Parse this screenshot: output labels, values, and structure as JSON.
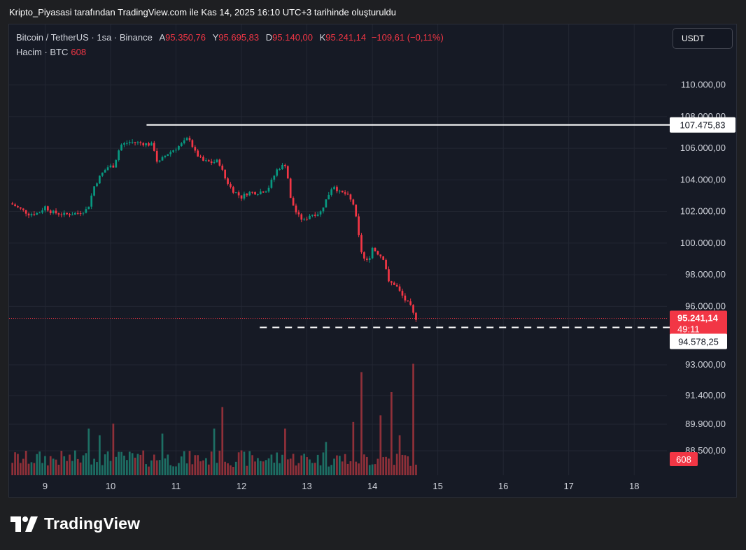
{
  "caption": "Kripto_Piyasasi tarafından TradingView.com ile Kas 14, 2025 16:10 UTC+3 tarihinde oluşturuldu",
  "legend": {
    "symbol": "Bitcoin / TetherUS · 1sa · Binance",
    "open_label": "A",
    "open": "95.350,76",
    "high_label": "Y",
    "high": "95.695,83",
    "low_label": "D",
    "low": "95.140,00",
    "close_label": "K",
    "close": "95.241,14",
    "change": "−109,61 (−0,11%)",
    "volume_label": "Hacim · BTC",
    "volume": "608"
  },
  "currency_button": "USDT",
  "brand": "TradingView",
  "colors": {
    "up": "#089981",
    "down": "#f23645",
    "vol_up": "#1d6f64",
    "vol_down": "#8f3039",
    "background": "#161a25",
    "grid": "#232733"
  },
  "chart_data": {
    "type": "candlestick",
    "interval": "1h",
    "x_tick_labels": [
      "9",
      "10",
      "11",
      "12",
      "13",
      "14",
      "15",
      "16",
      "17",
      "18"
    ],
    "x_range_days": [
      8.45,
      18.5
    ],
    "price_axis_labels": [
      "110.000,00",
      "108.000,00",
      "106.000,00",
      "104.000,00",
      "102.000,00",
      "100.000,00",
      "98.000,00",
      "96.000,00"
    ],
    "volume_axis_labels": [
      "93.000,00",
      "91.400,00",
      "89.900,00",
      "88.500,00"
    ],
    "price_range": [
      95000,
      110600
    ],
    "current_price": "95.241,14",
    "countdown": "49:11",
    "high_marker": {
      "label": "107.475,83",
      "value": 107475.83,
      "from_day": 10.55
    },
    "low_marker": {
      "label": "94.578,25",
      "value": 94578.25,
      "from_day": 12.28
    },
    "volume_label": "608",
    "price_path": [
      [
        8.5,
        102450
      ],
      [
        8.6,
        102200
      ],
      [
        8.75,
        101850
      ],
      [
        8.9,
        101900
      ],
      [
        9.0,
        102300
      ],
      [
        9.1,
        101950
      ],
      [
        9.3,
        101800
      ],
      [
        9.5,
        101900
      ],
      [
        9.65,
        102150
      ],
      [
        9.75,
        103600
      ],
      [
        9.85,
        104300
      ],
      [
        9.95,
        104800
      ],
      [
        10.05,
        104900
      ],
      [
        10.15,
        106200
      ],
      [
        10.3,
        106400
      ],
      [
        10.5,
        106300
      ],
      [
        10.65,
        106200
      ],
      [
        10.72,
        105000
      ],
      [
        10.85,
        105600
      ],
      [
        11.0,
        106000
      ],
      [
        11.1,
        106300
      ],
      [
        11.2,
        106700
      ],
      [
        11.28,
        105800
      ],
      [
        11.4,
        105200
      ],
      [
        11.55,
        105100
      ],
      [
        11.65,
        105200
      ],
      [
        11.75,
        104100
      ],
      [
        11.85,
        103400
      ],
      [
        12.0,
        102900
      ],
      [
        12.1,
        103200
      ],
      [
        12.25,
        103200
      ],
      [
        12.4,
        103400
      ],
      [
        12.55,
        104700
      ],
      [
        12.68,
        105000
      ],
      [
        12.75,
        102800
      ],
      [
        12.85,
        101800
      ],
      [
        12.95,
        101400
      ],
      [
        13.05,
        101800
      ],
      [
        13.2,
        101900
      ],
      [
        13.3,
        102800
      ],
      [
        13.4,
        103700
      ],
      [
        13.5,
        103200
      ],
      [
        13.6,
        103100
      ],
      [
        13.72,
        102400
      ],
      [
        13.8,
        100200
      ],
      [
        13.85,
        99100
      ],
      [
        13.93,
        98800
      ],
      [
        14.0,
        99700
      ],
      [
        14.1,
        99300
      ],
      [
        14.18,
        99000
      ],
      [
        14.25,
        97500
      ],
      [
        14.35,
        97400
      ],
      [
        14.42,
        96900
      ],
      [
        14.5,
        96400
      ],
      [
        14.58,
        96000
      ],
      [
        14.65,
        95250
      ]
    ],
    "volume_spikes": [
      [
        9.65,
        0.28
      ],
      [
        9.83,
        0.24
      ],
      [
        10.05,
        0.31
      ],
      [
        10.8,
        0.25
      ],
      [
        11.6,
        0.28
      ],
      [
        11.72,
        0.41
      ],
      [
        12.65,
        0.28
      ],
      [
        13.3,
        0.2
      ],
      [
        13.7,
        0.32
      ],
      [
        13.85,
        0.62
      ],
      [
        14.12,
        0.36
      ],
      [
        14.3,
        0.5
      ],
      [
        14.4,
        0.24
      ],
      [
        14.63,
        0.67
      ]
    ]
  }
}
